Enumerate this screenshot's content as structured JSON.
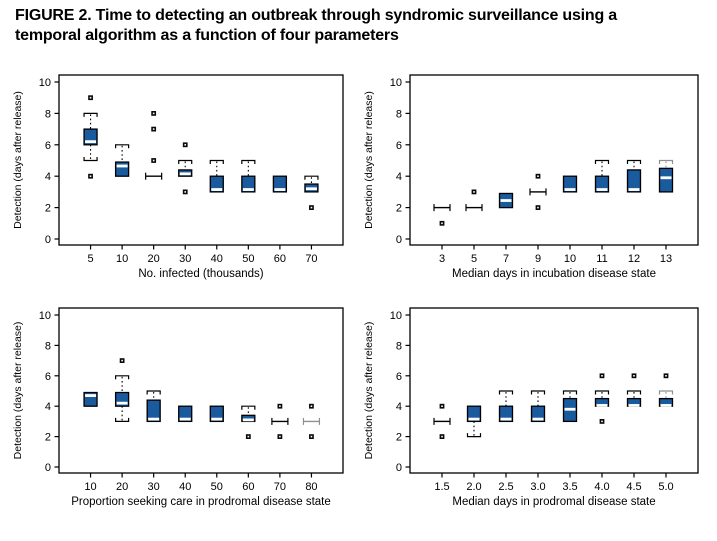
{
  "figure": {
    "title_line1": "FIGURE 2. Time to detecting an outbreak through syndromic surveillance using a",
    "title_line2": "temporal algorithm as a function of four parameters"
  },
  "colors": {
    "box_fill": "#1a5b9e",
    "box_border": "#000000",
    "median": "#ffffff",
    "outlier": "#0a0a0a",
    "gray": "#8f8f8f",
    "text": "#000000"
  },
  "chart_data": [
    {
      "type": "boxplot",
      "position": "top-left",
      "xlabel": "No. infected (thousands)",
      "ylabel": "Detection (days after release)",
      "ylim": [
        0,
        10
      ],
      "yticks": [
        0,
        2,
        4,
        6,
        8,
        10
      ],
      "categories": [
        "5",
        "10",
        "20",
        "30",
        "40",
        "50",
        "60",
        "70"
      ],
      "boxes": [
        {
          "category": "5",
          "q1": 6,
          "median": 6.2,
          "q3": 7,
          "whisker_high": 8,
          "whisker_low": 5,
          "outliers": [
            9,
            4
          ]
        },
        {
          "category": "10",
          "q1": 4,
          "median": 4.65,
          "q3": 4.9,
          "whisker_high": 6,
          "outliers": []
        },
        {
          "category": "20",
          "q1": 4,
          "median": 4,
          "q3": 4,
          "outliers": [
            8,
            7,
            5
          ]
        },
        {
          "category": "30",
          "q1": 4,
          "median": 4.15,
          "q3": 4.4,
          "whisker_high": 5,
          "outliers": [
            6,
            3
          ]
        },
        {
          "category": "40",
          "q1": 3,
          "median": 3.15,
          "q3": 4,
          "whisker_high": 5,
          "outliers": []
        },
        {
          "category": "50",
          "q1": 3,
          "median": 3.15,
          "q3": 4,
          "whisker_high": 5,
          "outliers": []
        },
        {
          "category": "60",
          "q1": 3,
          "median": 3.15,
          "q3": 4,
          "outliers": []
        },
        {
          "category": "70",
          "q1": 3,
          "median": 3.2,
          "q3": 3.5,
          "whisker_high": 4,
          "outliers": [
            2
          ]
        }
      ]
    },
    {
      "type": "boxplot",
      "position": "top-right",
      "xlabel": "Median days in incubation disease state",
      "ylabel": "Detection (days after release)",
      "ylim": [
        0,
        10
      ],
      "yticks": [
        0,
        2,
        4,
        6,
        8,
        10
      ],
      "categories": [
        "3",
        "5",
        "7",
        "9",
        "10",
        "11",
        "12",
        "13"
      ],
      "boxes": [
        {
          "category": "3",
          "q1": 2,
          "median": 2,
          "q3": 2,
          "outliers": [
            1
          ]
        },
        {
          "category": "5",
          "q1": 2,
          "median": 2,
          "q3": 2,
          "outliers": [
            3
          ]
        },
        {
          "category": "7",
          "q1": 2,
          "median": 2.45,
          "q3": 2.9,
          "outliers": []
        },
        {
          "category": "9",
          "q1": 3,
          "median": 3,
          "q3": 3,
          "outliers": [
            4,
            2
          ]
        },
        {
          "category": "10",
          "q1": 3,
          "median": 3.15,
          "q3": 4,
          "outliers": []
        },
        {
          "category": "11",
          "q1": 3,
          "median": 3.15,
          "q3": 4,
          "whisker_high": 5,
          "outliers": []
        },
        {
          "category": "12",
          "q1": 3,
          "median": 3.15,
          "q3": 4.4,
          "whisker_high": 5,
          "outliers": []
        },
        {
          "category": "13",
          "q1": 3,
          "median": 3.9,
          "q3": 4.5,
          "whisker_high": 5,
          "gray_whisker": true,
          "outliers": []
        }
      ]
    },
    {
      "type": "boxplot",
      "position": "bottom-left",
      "xlabel": "Proportion seeking care in prodromal disease state",
      "ylabel": "Detection (days after release)",
      "ylim": [
        0,
        10
      ],
      "yticks": [
        0,
        2,
        4,
        6,
        8,
        10
      ],
      "categories": [
        "10",
        "20",
        "30",
        "40",
        "50",
        "60",
        "70",
        "80"
      ],
      "boxes": [
        {
          "category": "10",
          "q1": 4,
          "median": 4.7,
          "q3": 4.9,
          "outliers": []
        },
        {
          "category": "20",
          "q1": 4,
          "median": 4.2,
          "q3": 4.9,
          "whisker_high": 6,
          "whisker_low": 3,
          "outliers": [
            7
          ]
        },
        {
          "category": "30",
          "q1": 3,
          "median": 3.15,
          "q3": 4.4,
          "whisker_high": 5,
          "outliers": []
        },
        {
          "category": "40",
          "q1": 3,
          "median": 3.15,
          "q3": 4,
          "outliers": []
        },
        {
          "category": "50",
          "q1": 3,
          "median": 3.15,
          "q3": 4,
          "outliers": []
        },
        {
          "category": "60",
          "q1": 3,
          "median": 3.1,
          "q3": 3.4,
          "whisker_high": 4,
          "outliers": [
            2
          ]
        },
        {
          "category": "70",
          "q1": 3,
          "median": 3,
          "q3": 3,
          "outliers": [
            4,
            2
          ]
        },
        {
          "category": "80",
          "q1": 3,
          "median": 3,
          "q3": 3,
          "gray_box": true,
          "outliers": [
            4,
            2
          ]
        }
      ]
    },
    {
      "type": "boxplot",
      "position": "bottom-right",
      "xlabel": "Median days in prodromal disease state",
      "ylabel": "Detection (days after release)",
      "ylim": [
        0,
        10
      ],
      "yticks": [
        0,
        2,
        4,
        6,
        8,
        10
      ],
      "categories": [
        "1.5",
        "2.0",
        "2.5",
        "3.0",
        "3.5",
        "4.0",
        "4.5",
        "5.0"
      ],
      "boxes": [
        {
          "category": "1.5",
          "q1": 3,
          "median": 3,
          "q3": 3,
          "outliers": [
            4,
            2
          ]
        },
        {
          "category": "2.0",
          "q1": 3,
          "median": 3.15,
          "q3": 4,
          "whisker_low": 2,
          "outliers": []
        },
        {
          "category": "2.5",
          "q1": 3,
          "median": 3.15,
          "q3": 4,
          "whisker_high": 5,
          "outliers": []
        },
        {
          "category": "3.0",
          "q1": 3,
          "median": 3.15,
          "q3": 4,
          "whisker_high": 5,
          "outliers": []
        },
        {
          "category": "3.5",
          "q1": 3,
          "median": 3.8,
          "q3": 4.5,
          "whisker_high": 5,
          "outliers": []
        },
        {
          "category": "4.0",
          "q1": 4,
          "median": 4.05,
          "q3": 4.5,
          "whisker_high": 5,
          "outliers": [
            6,
            3
          ]
        },
        {
          "category": "4.5",
          "q1": 4,
          "median": 4.05,
          "q3": 4.5,
          "whisker_high": 5,
          "outliers": [
            6
          ]
        },
        {
          "category": "5.0",
          "q1": 4,
          "median": 4.05,
          "q3": 4.5,
          "whisker_high": 5,
          "gray_whisker": true,
          "outliers": [
            6
          ]
        }
      ]
    }
  ]
}
